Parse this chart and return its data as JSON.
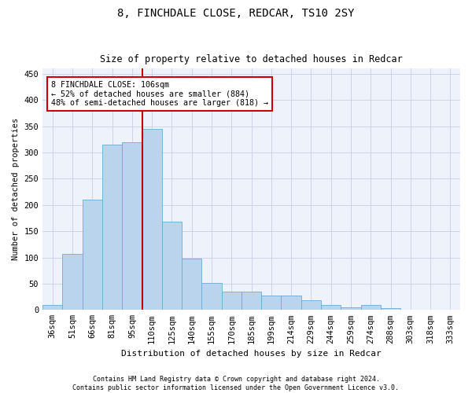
{
  "title1": "8, FINCHDALE CLOSE, REDCAR, TS10 2SY",
  "title2": "Size of property relative to detached houses in Redcar",
  "xlabel": "Distribution of detached houses by size in Redcar",
  "ylabel": "Number of detached properties",
  "categories": [
    "36sqm",
    "51sqm",
    "66sqm",
    "81sqm",
    "95sqm",
    "110sqm",
    "125sqm",
    "140sqm",
    "155sqm",
    "170sqm",
    "185sqm",
    "199sqm",
    "214sqm",
    "229sqm",
    "244sqm",
    "259sqm",
    "274sqm",
    "288sqm",
    "303sqm",
    "318sqm",
    "333sqm"
  ],
  "values": [
    10,
    107,
    210,
    315,
    320,
    345,
    168,
    98,
    52,
    35,
    35,
    28,
    28,
    18,
    10,
    5,
    10,
    4,
    1,
    1,
    1
  ],
  "bar_color": "#bad4ed",
  "bar_edge_color": "#6aaad4",
  "vline_color": "#cc0000",
  "vline_x_index": 4.5,
  "annotation_text": "8 FINCHDALE CLOSE: 106sqm\n← 52% of detached houses are smaller (884)\n48% of semi-detached houses are larger (818) →",
  "annotation_box_facecolor": "#ffffff",
  "annotation_box_edgecolor": "#cc0000",
  "ylim": [
    0,
    460
  ],
  "yticks": [
    0,
    50,
    100,
    150,
    200,
    250,
    300,
    350,
    400,
    450
  ],
  "footer1": "Contains HM Land Registry data © Crown copyright and database right 2024.",
  "footer2": "Contains public sector information licensed under the Open Government Licence v3.0.",
  "bg_color": "#eef2fb",
  "grid_color": "#c8d0e8",
  "title1_fontsize": 10,
  "title2_fontsize": 8.5,
  "xlabel_fontsize": 8,
  "ylabel_fontsize": 7.5,
  "tick_fontsize": 7.5,
  "annotation_fontsize": 7.2,
  "footer_fontsize": 6.0
}
